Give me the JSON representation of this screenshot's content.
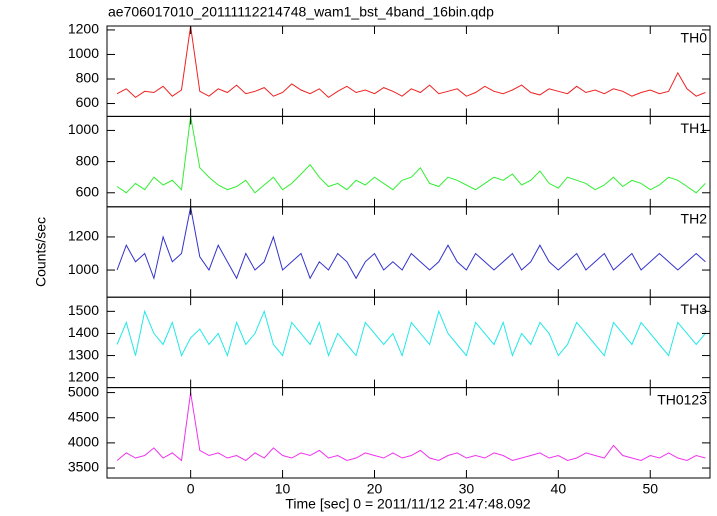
{
  "chart_data": [
    {
      "type": "line",
      "title": "ae706017010_20111112214748_wam1_bst_4band_16bin.qdp",
      "ylabel": "Counts/sec",
      "label": "TH0",
      "color": "#ee2222",
      "x": [
        -8,
        -7,
        -6,
        -5,
        -4,
        -3,
        -2,
        -1,
        0,
        1,
        2,
        3,
        4,
        5,
        6,
        7,
        8,
        9,
        10,
        11,
        12,
        13,
        14,
        15,
        16,
        17,
        18,
        19,
        20,
        21,
        22,
        23,
        24,
        25,
        26,
        27,
        28,
        29,
        30,
        31,
        32,
        33,
        34,
        35,
        36,
        37,
        38,
        39,
        40,
        41,
        42,
        43,
        44,
        45,
        46,
        47,
        48,
        49,
        50,
        51,
        52,
        53,
        54,
        55,
        56
      ],
      "values": [
        680,
        720,
        650,
        700,
        690,
        740,
        660,
        710,
        1230,
        700,
        660,
        720,
        690,
        750,
        680,
        700,
        730,
        660,
        690,
        760,
        710,
        680,
        720,
        650,
        700,
        740,
        690,
        710,
        680,
        730,
        700,
        660,
        720,
        690,
        750,
        680,
        700,
        720,
        660,
        690,
        740,
        700,
        680,
        710,
        750,
        690,
        670,
        720,
        700,
        680,
        740,
        690,
        710,
        680,
        720,
        700,
        660,
        690,
        710,
        680,
        700,
        850,
        720,
        660,
        690
      ],
      "xlim": [
        -9.1,
        56.5
      ],
      "xticks": [
        0,
        10,
        20,
        30,
        40,
        50
      ],
      "ylim": [
        495,
        1232
      ],
      "yticks": [
        600,
        800,
        1000,
        1200
      ]
    },
    {
      "type": "line",
      "label": "TH1",
      "color": "#33ee33",
      "x": [
        -8,
        -7,
        -6,
        -5,
        -4,
        -3,
        -2,
        -1,
        0,
        1,
        2,
        3,
        4,
        5,
        6,
        7,
        8,
        9,
        10,
        11,
        12,
        13,
        14,
        15,
        16,
        17,
        18,
        19,
        20,
        21,
        22,
        23,
        24,
        25,
        26,
        27,
        28,
        29,
        30,
        31,
        32,
        33,
        34,
        35,
        36,
        37,
        38,
        39,
        40,
        41,
        42,
        43,
        44,
        45,
        46,
        47,
        48,
        49,
        50,
        51,
        52,
        53,
        54,
        55,
        56
      ],
      "values": [
        640,
        600,
        660,
        620,
        700,
        650,
        680,
        620,
        1090,
        760,
        700,
        650,
        620,
        640,
        680,
        600,
        650,
        700,
        620,
        660,
        720,
        780,
        700,
        640,
        660,
        620,
        680,
        650,
        700,
        660,
        620,
        680,
        700,
        760,
        660,
        640,
        700,
        680,
        650,
        620,
        660,
        700,
        680,
        720,
        650,
        680,
        740,
        660,
        630,
        700,
        680,
        660,
        620,
        650,
        700,
        640,
        680,
        660,
        620,
        650,
        700,
        680,
        640,
        600,
        660
      ],
      "xlim": [
        -9.1,
        56.5
      ],
      "xticks": [
        0,
        10,
        20,
        30,
        40,
        50
      ],
      "ylim": [
        510,
        1090
      ],
      "yticks": [
        600,
        800,
        1000
      ]
    },
    {
      "type": "line",
      "label": "TH2",
      "color": "#3333cc",
      "x": [
        -8,
        -7,
        -6,
        -5,
        -4,
        -3,
        -2,
        -1,
        0,
        1,
        2,
        3,
        4,
        5,
        6,
        7,
        8,
        9,
        10,
        11,
        12,
        13,
        14,
        15,
        16,
        17,
        18,
        19,
        20,
        21,
        22,
        23,
        24,
        25,
        26,
        27,
        28,
        29,
        30,
        31,
        32,
        33,
        34,
        35,
        36,
        37,
        38,
        39,
        40,
        41,
        42,
        43,
        44,
        45,
        46,
        47,
        48,
        49,
        50,
        51,
        52,
        53,
        54,
        55,
        56
      ],
      "values": [
        1000,
        1150,
        1050,
        1100,
        950,
        1200,
        1050,
        1100,
        1380,
        1080,
        1000,
        1150,
        1050,
        950,
        1100,
        1000,
        1050,
        1200,
        1000,
        1050,
        1100,
        950,
        1050,
        1000,
        1100,
        1050,
        950,
        1050,
        1100,
        1000,
        1050,
        1000,
        1100,
        1050,
        1000,
        1050,
        1150,
        1050,
        1000,
        1100,
        1050,
        1000,
        1050,
        1100,
        1000,
        1050,
        1150,
        1050,
        1000,
        1050,
        1100,
        1000,
        1050,
        1100,
        1000,
        1050,
        1100,
        1000,
        1050,
        1100,
        1050,
        1000,
        1050,
        1100,
        1050
      ],
      "xlim": [
        -9.1,
        56.5
      ],
      "xticks": [
        0,
        10,
        20,
        30,
        40,
        50
      ],
      "ylim": [
        836,
        1382
      ],
      "yticks": [
        1000,
        1200
      ]
    },
    {
      "type": "line",
      "label": "TH3",
      "color": "#22e8e8",
      "x": [
        -8,
        -7,
        -6,
        -5,
        -4,
        -3,
        -2,
        -1,
        0,
        1,
        2,
        3,
        4,
        5,
        6,
        7,
        8,
        9,
        10,
        11,
        12,
        13,
        14,
        15,
        16,
        17,
        18,
        19,
        20,
        21,
        22,
        23,
        24,
        25,
        26,
        27,
        28,
        29,
        30,
        31,
        32,
        33,
        34,
        35,
        36,
        37,
        38,
        39,
        40,
        41,
        42,
        43,
        44,
        45,
        46,
        47,
        48,
        49,
        50,
        51,
        52,
        53,
        54,
        55,
        56
      ],
      "values": [
        1350,
        1450,
        1300,
        1500,
        1400,
        1350,
        1450,
        1300,
        1380,
        1420,
        1350,
        1400,
        1300,
        1450,
        1350,
        1400,
        1500,
        1350,
        1300,
        1450,
        1400,
        1350,
        1450,
        1300,
        1400,
        1350,
        1300,
        1450,
        1400,
        1350,
        1400,
        1300,
        1450,
        1400,
        1350,
        1500,
        1400,
        1350,
        1300,
        1450,
        1400,
        1350,
        1450,
        1300,
        1400,
        1350,
        1450,
        1400,
        1300,
        1350,
        1450,
        1400,
        1350,
        1300,
        1450,
        1400,
        1350,
        1450,
        1400,
        1350,
        1300,
        1450,
        1400,
        1350,
        1400
      ],
      "xlim": [
        -9.1,
        56.5
      ],
      "xticks": [
        0,
        10,
        20,
        30,
        40,
        50
      ],
      "ylim": [
        1155,
        1564
      ],
      "yticks": [
        1200,
        1300,
        1400,
        1500
      ]
    },
    {
      "type": "line",
      "label": "TH0123",
      "color": "#ee33ee",
      "xlabel": "Time [sec] 0 = 2011/11/12 21:47:48.092",
      "x": [
        -8,
        -7,
        -6,
        -5,
        -4,
        -3,
        -2,
        -1,
        0,
        1,
        2,
        3,
        4,
        5,
        6,
        7,
        8,
        9,
        10,
        11,
        12,
        13,
        14,
        15,
        16,
        17,
        18,
        19,
        20,
        21,
        22,
        23,
        24,
        25,
        26,
        27,
        28,
        29,
        30,
        31,
        32,
        33,
        34,
        35,
        36,
        37,
        38,
        39,
        40,
        41,
        42,
        43,
        44,
        45,
        46,
        47,
        48,
        49,
        50,
        51,
        52,
        53,
        54,
        55,
        56
      ],
      "values": [
        3650,
        3800,
        3700,
        3750,
        3900,
        3700,
        3800,
        3650,
        5000,
        3850,
        3750,
        3800,
        3700,
        3750,
        3650,
        3800,
        3700,
        3900,
        3750,
        3700,
        3800,
        3750,
        3850,
        3700,
        3750,
        3650,
        3700,
        3800,
        3750,
        3700,
        3800,
        3700,
        3750,
        3850,
        3700,
        3650,
        3750,
        3800,
        3700,
        3750,
        3700,
        3800,
        3750,
        3650,
        3700,
        3750,
        3800,
        3700,
        3750,
        3650,
        3700,
        3800,
        3750,
        3700,
        3950,
        3750,
        3700,
        3650,
        3750,
        3700,
        3800,
        3700,
        3650,
        3750,
        3700
      ],
      "xlim": [
        -9.1,
        56.5
      ],
      "xticks": [
        0,
        10,
        20,
        30,
        40,
        50
      ],
      "ylim": [
        3302,
        5099
      ],
      "yticks": [
        3500,
        4000,
        4500,
        5000
      ]
    }
  ]
}
